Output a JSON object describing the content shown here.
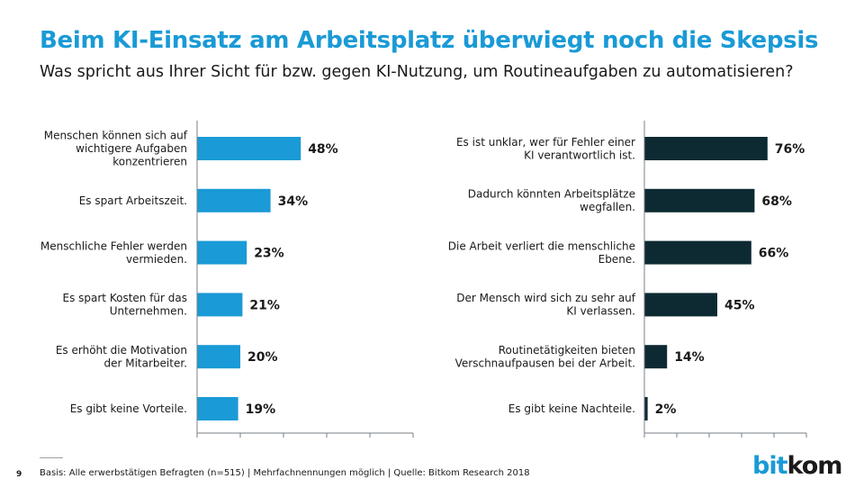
{
  "header": {
    "title": "Beim KI-Einsatz am Arbeitsplatz überwiegt noch die Skepsis",
    "subtitle": "Was spricht aus Ihrer Sicht für bzw. gegen KI-Nutzung, um Routineaufgaben zu automatisieren?"
  },
  "chart_data": [
    {
      "type": "bar",
      "orientation": "horizontal",
      "color": "#1a9ad6",
      "xlim": [
        0,
        100
      ],
      "categories": [
        [
          "Menschen können sich auf",
          "wichtigere Aufgaben",
          "konzentrieren"
        ],
        [
          "Es spart Arbeitszeit."
        ],
        [
          "Menschliche Fehler werden",
          "vermieden."
        ],
        [
          "Es spart Kosten für das",
          "Unternehmen."
        ],
        [
          "Es erhöht die Motivation",
          "der Mitarbeiter."
        ],
        [
          "Es gibt keine Vorteile."
        ]
      ],
      "values": [
        48,
        34,
        23,
        21,
        20,
        19
      ],
      "value_labels": [
        "48%",
        "34%",
        "23%",
        "21%",
        "20%",
        "19%"
      ]
    },
    {
      "type": "bar",
      "orientation": "horizontal",
      "color": "#0d2a33",
      "xlim": [
        0,
        100
      ],
      "categories": [
        [
          "Es ist unklar, wer für Fehler einer",
          "KI verantwortlich ist."
        ],
        [
          "Dadurch könnten Arbeitsplätze",
          "wegfallen."
        ],
        [
          "Die Arbeit verliert die menschliche",
          "Ebene."
        ],
        [
          "Der Mensch wird sich zu sehr auf",
          "KI verlassen."
        ],
        [
          "Routinetätigkeiten bieten",
          "Verschnaufpausen bei der Arbeit."
        ],
        [
          "Es gibt keine Nachteile."
        ]
      ],
      "values": [
        76,
        68,
        66,
        45,
        14,
        2
      ],
      "value_labels": [
        "76%",
        "68%",
        "66%",
        "45%",
        "14%",
        "2%"
      ]
    }
  ],
  "footer": {
    "page_number": "9",
    "note": "Basis: Alle erwerbstätigen Befragten (n=515) | Mehrfachnennungen möglich | Quelle: Bitkom Research 2018"
  },
  "logo": {
    "part1": "bit",
    "part2": "kom"
  }
}
